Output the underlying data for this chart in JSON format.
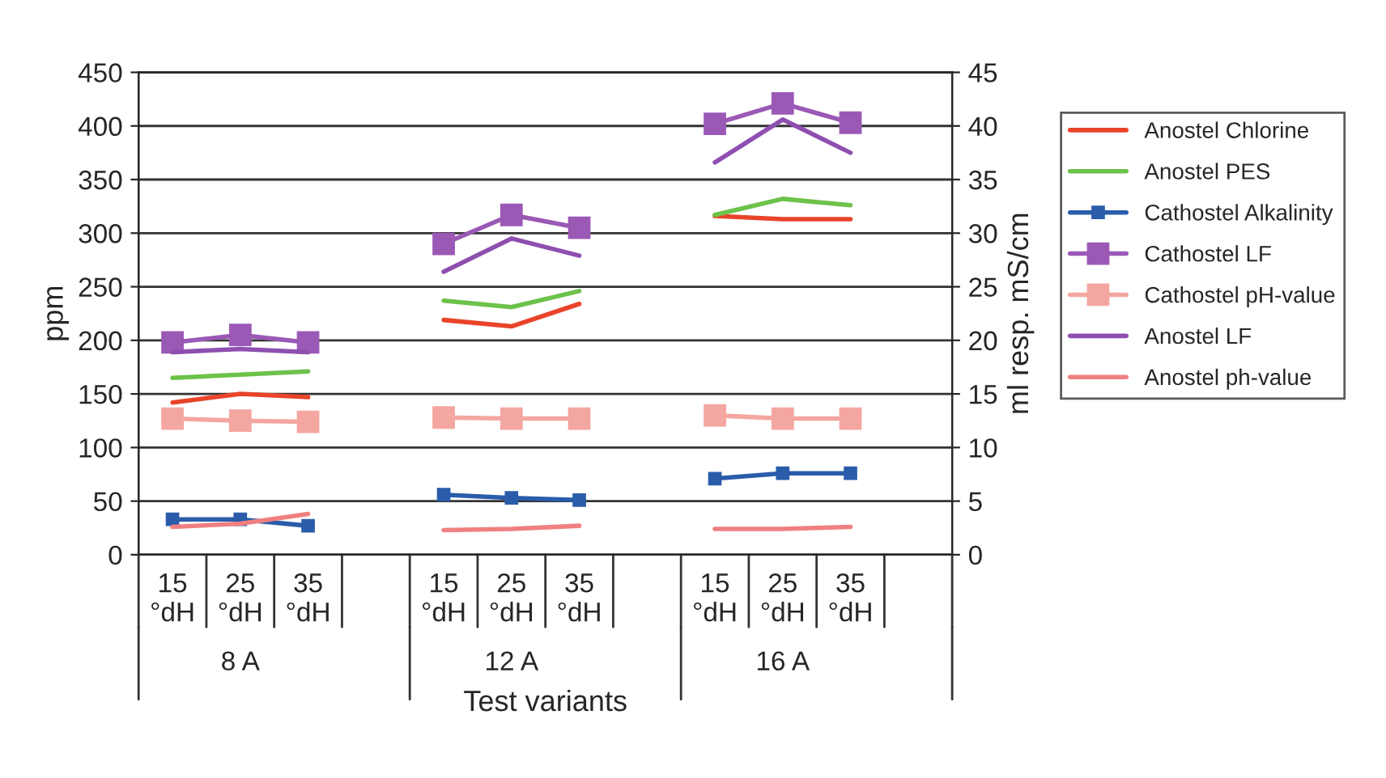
{
  "chart_data": {
    "type": "line",
    "xlabel": "Test variants",
    "ylabel": "ppm",
    "y2label": "ml resp. mS/cm",
    "categories": [
      "15\n°dH",
      "25\n°dH",
      "35\n°dH",
      null,
      "15\n°dH",
      "25\n°dH",
      "35\n°dH",
      null,
      "15\n°dH",
      "25\n°dH",
      "35\n°dH",
      null
    ],
    "annotations": [
      "8 A",
      "12 A",
      "16 A"
    ],
    "ylim": [
      0,
      450
    ],
    "yticks": [
      0,
      50,
      100,
      150,
      200,
      250,
      300,
      350,
      400,
      450
    ],
    "y2lim": [
      0,
      45
    ],
    "y2ticks": [
      0,
      5,
      10,
      15,
      20,
      25,
      30,
      35,
      40,
      45
    ],
    "grid": "y",
    "legend": "right",
    "line_style": "solid",
    "series": [
      {
        "name": "Anostel Chlorine",
        "color": "#e8442a",
        "marker": "none",
        "values": [
          142,
          150,
          147,
          null,
          219,
          213,
          234,
          null,
          316,
          313,
          313,
          null
        ]
      },
      {
        "name": "Anostel PES",
        "color": "#6cc24a",
        "marker": "none",
        "values": [
          165,
          168,
          171,
          null,
          237,
          231,
          246,
          null,
          317,
          332,
          326,
          null
        ]
      },
      {
        "name": "Cathostel Alkalinity",
        "color": "#2a5caa",
        "marker": "square",
        "values": [
          33,
          33,
          27,
          null,
          56,
          53,
          51,
          null,
          71,
          76,
          76,
          null
        ]
      },
      {
        "name": "Cathostel LF",
        "color": "#9b59b6",
        "marker": "square",
        "axis": "y2",
        "values": [
          19.8,
          20.5,
          19.8,
          null,
          29,
          31.7,
          30.5,
          null,
          40.2,
          42.1,
          40.3,
          null
        ]
      },
      {
        "name": "Cathostel pH-value",
        "color": "#f4a6a0",
        "marker": "square",
        "axis": "y2",
        "values": [
          12.7,
          12.5,
          12.4,
          null,
          12.8,
          12.7,
          12.7,
          null,
          13,
          12.7,
          12.7,
          null
        ]
      },
      {
        "name": "Anostel LF",
        "color": "#8e4fb0",
        "marker": "none",
        "axis": "y2",
        "values": [
          18.9,
          19.2,
          18.9,
          null,
          26.4,
          29.5,
          27.9,
          null,
          36.6,
          40.6,
          37.5,
          null
        ]
      },
      {
        "name": "Anostel ph-value",
        "color": "#f08080",
        "marker": "none",
        "axis": "y2",
        "values": [
          2.6,
          2.9,
          3.8,
          null,
          2.3,
          2.4,
          2.7,
          null,
          2.4,
          2.4,
          2.6,
          null
        ]
      }
    ]
  }
}
